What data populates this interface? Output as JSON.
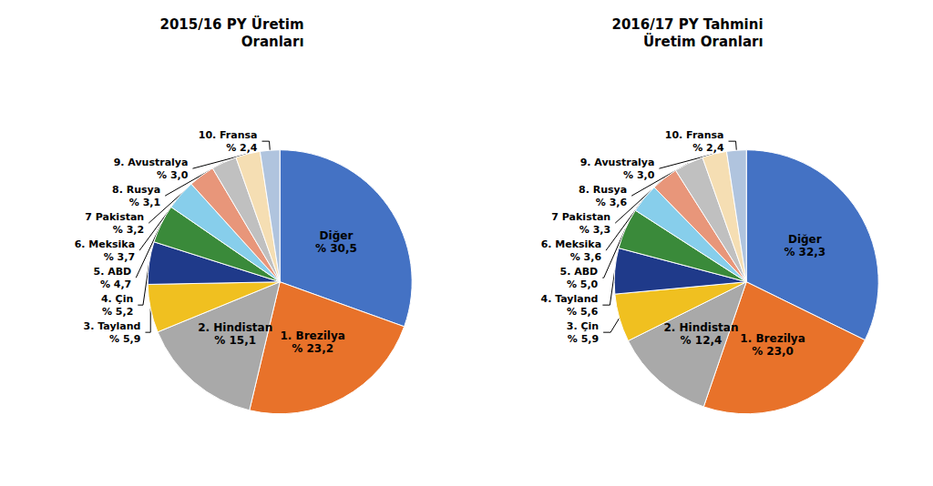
{
  "chart_data": [
    {
      "type": "pie",
      "title": "2015/16 PY Üretim\nOranları",
      "categories": [
        "Diğer",
        "1. Brezilya",
        "2. Hindistan",
        "3. Tayland",
        "4. Çin",
        "5. ABD",
        "6. Meksika",
        "7 Pakistan",
        "8. Rusya",
        "9. Avustralya",
        "10. Fransa"
      ],
      "values": [
        30.5,
        23.2,
        15.1,
        5.9,
        5.2,
        4.7,
        3.7,
        3.2,
        3.1,
        3.0,
        2.4
      ],
      "value_labels": [
        "% 30,5",
        "% 23,2",
        "% 15,1",
        "% 5,9",
        "% 5,2",
        "% 4,7",
        "% 3,7",
        "% 3,2",
        "% 3,1",
        "% 3,0",
        "% 2,4"
      ],
      "colors": [
        "#4472C4",
        "#E8722A",
        "#A9A9A9",
        "#F0C020",
        "#1F3A8A",
        "#3A8A3A",
        "#87CEEB",
        "#E8967A",
        "#C0C0C0",
        "#F5DEB3",
        "#B0C4DE"
      ]
    },
    {
      "type": "pie",
      "title": "2016/17 PY Tahmini\nÜretim Oranları",
      "categories": [
        "Diğer",
        "1. Brezilya",
        "2. Hindistan",
        "3. Çin",
        "4. Tayland",
        "5. ABD",
        "6. Meksika",
        "7 Pakistan",
        "8. Rusya",
        "9. Avustralya",
        "10. Fransa"
      ],
      "values": [
        32.3,
        23.0,
        12.4,
        5.9,
        5.6,
        5.0,
        3.6,
        3.3,
        3.6,
        3.0,
        2.4
      ],
      "value_labels": [
        "% 32,3",
        "% 23,0",
        "% 12,4",
        "% 5,9",
        "% 5,6",
        "% 5,0",
        "% 3,6",
        "% 3,3",
        "% 3,6",
        "% 3,0",
        "% 2,4"
      ],
      "colors": [
        "#4472C4",
        "#E8722A",
        "#A9A9A9",
        "#F0C020",
        "#1F3A8A",
        "#3A8A3A",
        "#87CEEB",
        "#E8967A",
        "#C0C0C0",
        "#F5DEB3",
        "#B0C4DE"
      ]
    }
  ]
}
